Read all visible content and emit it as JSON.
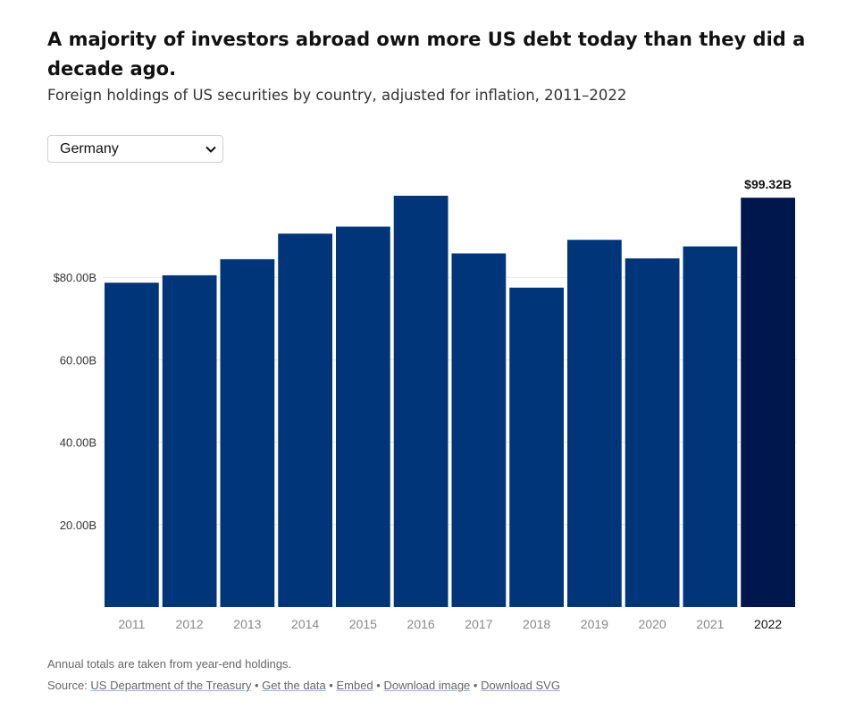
{
  "header": {
    "title": "A majority of investors abroad own more US debt today than they did a decade ago.",
    "subtitle": "Foreign holdings of US securities by country, adjusted for inflation, 2011–2022"
  },
  "country_select": {
    "selected": "Germany",
    "icon": "chevron-down-icon"
  },
  "footer": {
    "note": "Annual totals are taken from year-end holdings.",
    "source_prefix": "Source: ",
    "links": [
      "US Department of the Treasury",
      "Get the data",
      "Embed",
      "Download image",
      "Download SVG"
    ],
    "separator": " • "
  },
  "colors": {
    "bar": "#00357a",
    "bar_highlight": "#00174d",
    "grid": "#e6e6e6",
    "axis_text": "#666666"
  },
  "chart_data": {
    "type": "bar",
    "categories": [
      "2011",
      "2012",
      "2013",
      "2014",
      "2015",
      "2016",
      "2017",
      "2018",
      "2019",
      "2020",
      "2021",
      "2022"
    ],
    "values": [
      78.7,
      80.5,
      84.4,
      90.6,
      92.3,
      99.8,
      85.8,
      77.5,
      89.1,
      84.6,
      87.5,
      99.32
    ],
    "highlight_index": 11,
    "highlight_label": "$99.32B",
    "ylim": [
      0,
      100
    ],
    "y_ticks": [
      20,
      40,
      60,
      80
    ],
    "y_tick_labels": [
      "20.00B",
      "40.00B",
      "60.00B",
      "$80.00B"
    ],
    "title": "",
    "xlabel": "",
    "ylabel": "",
    "grid": true
  }
}
